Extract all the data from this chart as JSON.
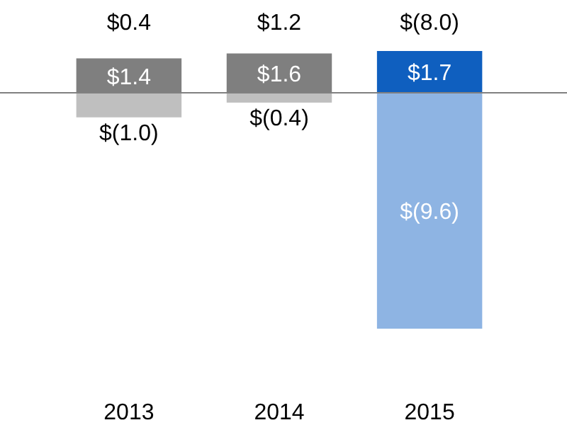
{
  "chart_data": {
    "type": "bar",
    "stacked": true,
    "categories": [
      "2013",
      "2014",
      "2015"
    ],
    "series": [
      {
        "colors": [
          "#7f7f7f",
          "#7f7f7f",
          "#0f5fbf"
        ],
        "values": [
          1.4,
          1.6,
          1.7
        ],
        "value_labels": [
          "$1.4",
          "$1.6",
          "$1.7"
        ]
      },
      {
        "colors": [
          "#bfbfbf",
          "#bfbfbf",
          "#8eb4e3"
        ],
        "values": [
          -1.0,
          -0.4,
          -9.6
        ],
        "value_labels": [
          "$(1.0)",
          "$(0.4)",
          "$(9.6)"
        ]
      }
    ],
    "totals": [
      "$0.4",
      "$1.2",
      "$(8.0)"
    ]
  }
}
